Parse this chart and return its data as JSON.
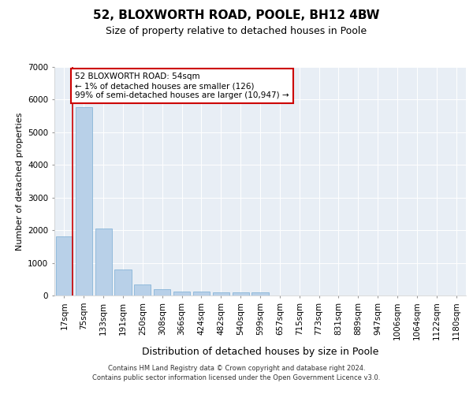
{
  "title1": "52, BLOXWORTH ROAD, POOLE, BH12 4BW",
  "title2": "Size of property relative to detached houses in Poole",
  "xlabel": "Distribution of detached houses by size in Poole",
  "ylabel": "Number of detached properties",
  "categories": [
    "17sqm",
    "75sqm",
    "133sqm",
    "191sqm",
    "250sqm",
    "308sqm",
    "366sqm",
    "424sqm",
    "482sqm",
    "540sqm",
    "599sqm",
    "657sqm",
    "715sqm",
    "773sqm",
    "831sqm",
    "889sqm",
    "947sqm",
    "1006sqm",
    "1064sqm",
    "1122sqm",
    "1180sqm"
  ],
  "values": [
    1800,
    5780,
    2060,
    800,
    340,
    200,
    120,
    110,
    95,
    95,
    90,
    0,
    0,
    0,
    0,
    0,
    0,
    0,
    0,
    0,
    0
  ],
  "bar_color": "#b8d0e8",
  "bar_edgecolor": "#7aadd4",
  "annotation_text": "52 BLOXWORTH ROAD: 54sqm\n← 1% of detached houses are smaller (126)\n99% of semi-detached houses are larger (10,947) →",
  "annotation_box_color": "#ffffff",
  "annotation_box_edgecolor": "#cc0000",
  "red_line_x": 0.43,
  "ylim": [
    0,
    7000
  ],
  "yticks": [
    0,
    1000,
    2000,
    3000,
    4000,
    5000,
    6000,
    7000
  ],
  "plot_bg_color": "#e8eef5",
  "footer_line1": "Contains HM Land Registry data © Crown copyright and database right 2024.",
  "footer_line2": "Contains public sector information licensed under the Open Government Licence v3.0.",
  "title1_fontsize": 11,
  "title2_fontsize": 9,
  "xlabel_fontsize": 9,
  "ylabel_fontsize": 8,
  "tick_fontsize": 7.5,
  "annot_fontsize": 7.5,
  "footer_fontsize": 6
}
